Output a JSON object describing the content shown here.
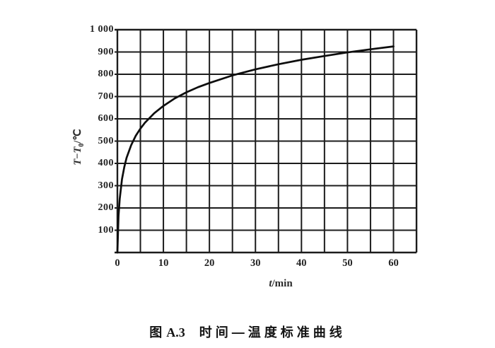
{
  "figure": {
    "caption_fig": "图",
    "caption_num": "A.3",
    "caption_title": "时间—温度标准曲线"
  },
  "axes": {
    "y": {
      "var1": "T",
      "minus": "−",
      "var2": "T",
      "sub": "0",
      "slash": "/",
      "unit": "℃"
    },
    "x": {
      "var": "t",
      "slash": "/",
      "unit": "min"
    }
  },
  "chart_data": {
    "type": "line",
    "title": "时间—温度标准曲线",
    "xlabel": "t/min",
    "ylabel": "T−T0/℃",
    "xlim": [
      0,
      65
    ],
    "ylim": [
      0,
      1000
    ],
    "x_grid_step": 5,
    "y_grid_step": 100,
    "grid": true,
    "legend": false,
    "x_ticks": [
      {
        "v": 0,
        "label": "0"
      },
      {
        "v": 10,
        "label": "10"
      },
      {
        "v": 20,
        "label": "20"
      },
      {
        "v": 30,
        "label": "30"
      },
      {
        "v": 40,
        "label": "40"
      },
      {
        "v": 50,
        "label": "50"
      },
      {
        "v": 60,
        "label": "60"
      }
    ],
    "y_ticks": [
      {
        "v": 100,
        "label": "100"
      },
      {
        "v": 200,
        "label": "200"
      },
      {
        "v": 300,
        "label": "300"
      },
      {
        "v": 400,
        "label": "400"
      },
      {
        "v": 500,
        "label": "500"
      },
      {
        "v": 600,
        "label": "600"
      },
      {
        "v": 700,
        "label": "700"
      },
      {
        "v": 800,
        "label": "800"
      },
      {
        "v": 900,
        "label": "900"
      },
      {
        "v": 1000,
        "label": "1 000"
      }
    ],
    "series": [
      {
        "name": "时间—温度标准曲线",
        "points": [
          [
            0,
            0
          ],
          [
            0.25,
            164
          ],
          [
            0.5,
            241
          ],
          [
            1,
            329
          ],
          [
            1.5,
            384
          ],
          [
            2,
            425
          ],
          [
            3,
            482
          ],
          [
            4,
            524
          ],
          [
            5,
            556
          ],
          [
            6,
            583
          ],
          [
            8,
            625
          ],
          [
            10,
            658
          ],
          [
            12.5,
            692
          ],
          [
            15,
            719
          ],
          [
            17.5,
            742
          ],
          [
            20,
            761
          ],
          [
            25,
            795
          ],
          [
            30,
            822
          ],
          [
            35,
            845
          ],
          [
            40,
            865
          ],
          [
            45,
            882
          ],
          [
            50,
            898
          ],
          [
            55,
            912
          ],
          [
            60,
            925
          ]
        ]
      }
    ],
    "line_color": "#0d0d0d",
    "grid_color": "#1c1c1c",
    "background": "#ffffff"
  }
}
